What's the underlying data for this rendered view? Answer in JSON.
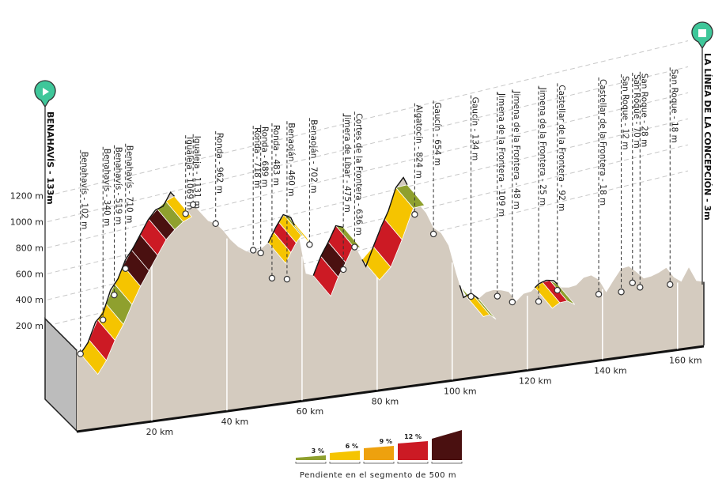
{
  "chart_data": {
    "type": "area",
    "title": "",
    "xlabel": "",
    "ylabel": "",
    "x_unit": "km",
    "y_unit": "m",
    "xlim": [
      0,
      167
    ],
    "ylim": [
      0,
      1300
    ],
    "x_ticks": [
      {
        "value": 20,
        "label": "20 km"
      },
      {
        "value": 40,
        "label": "40 km"
      },
      {
        "value": 60,
        "label": "60 km"
      },
      {
        "value": 80,
        "label": "80 km"
      },
      {
        "value": 100,
        "label": "100 km"
      },
      {
        "value": 120,
        "label": "120 km"
      },
      {
        "value": 140,
        "label": "140 km"
      },
      {
        "value": 160,
        "label": "160 km"
      }
    ],
    "y_ticks": [
      {
        "value": 200,
        "label": "200 m"
      },
      {
        "value": 400,
        "label": "400 m"
      },
      {
        "value": 600,
        "label": "600 m"
      },
      {
        "value": 800,
        "label": "800 m"
      },
      {
        "value": 1000,
        "label": "1000 m"
      },
      {
        "value": 1200,
        "label": "1200 m"
      }
    ],
    "grid": true,
    "profile": {
      "km": [
        0,
        1,
        3,
        5,
        7,
        9,
        11,
        13,
        15,
        17,
        19,
        21,
        23,
        25,
        27,
        29,
        31,
        33,
        35,
        37,
        39,
        41,
        43,
        45,
        47,
        49,
        51,
        53,
        55,
        57,
        59,
        61,
        63,
        65,
        67,
        69,
        71,
        73,
        75,
        77,
        79,
        81,
        83,
        85,
        87,
        89,
        91,
        93,
        95,
        97,
        99,
        101,
        103,
        105,
        107,
        109,
        111,
        113,
        115,
        117,
        119,
        121,
        123,
        125,
        127,
        129,
        131,
        133,
        135,
        137,
        139,
        141,
        143,
        145,
        147,
        149,
        151,
        153,
        155,
        157,
        159,
        161,
        163,
        165,
        167
      ],
      "elev": [
        133,
        102,
        180,
        330,
        390,
        560,
        640,
        780,
        860,
        960,
        1060,
        1130,
        1150,
        1250,
        1180,
        1069,
        1131,
        1060,
        990,
        962,
        900,
        820,
        760,
        720,
        689,
        718,
        760,
        870,
        960,
        930,
        800,
        483,
        460,
        600,
        702,
        820,
        800,
        700,
        590,
        475,
        620,
        760,
        880,
        1050,
        1120,
        1000,
        900,
        824,
        700,
        654,
        550,
        330,
        134,
        160,
        109,
        150,
        160,
        150,
        130,
        48,
        100,
        110,
        160,
        180,
        170,
        109,
        100,
        110,
        160,
        170,
        130,
        25,
        110,
        190,
        200,
        150,
        92,
        100,
        120,
        150,
        70,
        28,
        130,
        18,
        3
      ]
    },
    "climbs": [
      {
        "from_km": 1,
        "to_km": 26,
        "grade_classes": [
          "6",
          "9",
          "6",
          "3",
          "6",
          "12",
          "12",
          "9",
          "12",
          "3",
          "6"
        ]
      },
      {
        "from_km": 51,
        "to_km": 58,
        "grade_classes": [
          "6",
          "9",
          "6",
          "3",
          "6"
        ]
      },
      {
        "from_km": 63,
        "to_km": 71,
        "grade_classes": [
          "9",
          "12",
          "9",
          "3"
        ]
      },
      {
        "from_km": 76,
        "to_km": 88,
        "grade_classes": [
          "6",
          "9",
          "6",
          "3"
        ]
      },
      {
        "from_km": 102,
        "to_km": 107,
        "grade_classes": [
          "3",
          "6",
          "3"
        ]
      },
      {
        "from_km": 122,
        "to_km": 128,
        "grade_classes": [
          "6",
          "9",
          "3"
        ]
      }
    ],
    "start": {
      "label": "BENAHAVÍS - 133m",
      "icon": "play-icon"
    },
    "finish": {
      "label": "LA LÍNEA DE LA CONCEPCIÓN - 3m",
      "icon": "stop-icon"
    },
    "waypoints": [
      {
        "label": "Benahavís - 102 m",
        "km": 1,
        "elev": 102
      },
      {
        "label": "Benahavís - 340 m",
        "km": 7,
        "elev": 340
      },
      {
        "label": "Benahavís - 519 m",
        "km": 10,
        "elev": 519
      },
      {
        "label": "Benahavís - 710 m",
        "km": 13,
        "elev": 710
      },
      {
        "label": "Igualeja - 1069 m",
        "km": 29,
        "elev": 1069
      },
      {
        "label": "Igualeja - 1131 m",
        "km": 31,
        "elev": 1131
      },
      {
        "label": "Ronda - 962 m",
        "km": 37,
        "elev": 962
      },
      {
        "label": "Ronda - 718 m",
        "km": 47,
        "elev": 718
      },
      {
        "label": "Ronda - 689 m",
        "km": 49,
        "elev": 689
      },
      {
        "label": "Ronda - 483 m",
        "km": 52,
        "elev": 483
      },
      {
        "label": "Benaoján - 460 m",
        "km": 56,
        "elev": 460
      },
      {
        "label": "Benaoján - 702 m",
        "km": 62,
        "elev": 702
      },
      {
        "label": "Jimera de Líbar - 475 m",
        "km": 71,
        "elev": 475
      },
      {
        "label": "Cortes de la Frontera - 636 m",
        "km": 74,
        "elev": 636
      },
      {
        "label": "Algatocín - 824 m",
        "km": 90,
        "elev": 824
      },
      {
        "label": "Gaucín - 654 m",
        "km": 95,
        "elev": 654
      },
      {
        "label": "Gaucín - 134 m",
        "km": 105,
        "elev": 134
      },
      {
        "label": "Jimena de la Frontera - 109 m",
        "km": 112,
        "elev": 109
      },
      {
        "label": "Jimena de la Frontera - 48 m",
        "km": 116,
        "elev": 48
      },
      {
        "label": "Jimena de la Frontera - 25 m",
        "km": 123,
        "elev": 25
      },
      {
        "label": "Castellar de la Frontera - 92 m",
        "km": 128,
        "elev": 92
      },
      {
        "label": "Castellar de la Frontera - 18 m",
        "km": 139,
        "elev": 18
      },
      {
        "label": "San Roque - 12 m",
        "km": 145,
        "elev": 12
      },
      {
        "label": "San Roque - 70 m",
        "km": 148,
        "elev": 70
      },
      {
        "label": "San Roque - 28 m",
        "km": 150,
        "elev": 28
      },
      {
        "label": "San Roque - 18 m",
        "km": 158,
        "elev": 18
      }
    ],
    "legend": {
      "title": "Pendiente en el segmento de 500 m",
      "placement": "bottom-center",
      "items": [
        {
          "label": "3 %",
          "color": "#8fa02e"
        },
        {
          "label": "6 %",
          "color": "#f5c400"
        },
        {
          "label": "9 %",
          "color": "#eea10e"
        },
        {
          "label": "12 %",
          "color": "#cc1a24"
        },
        {
          "label": "",
          "color": "#4a1010"
        }
      ]
    },
    "colors": {
      "terrain": "#d4cbbf",
      "side": "#bcbcbc",
      "marker": "#3fc79a",
      "grid": "#c8c8c8"
    }
  }
}
